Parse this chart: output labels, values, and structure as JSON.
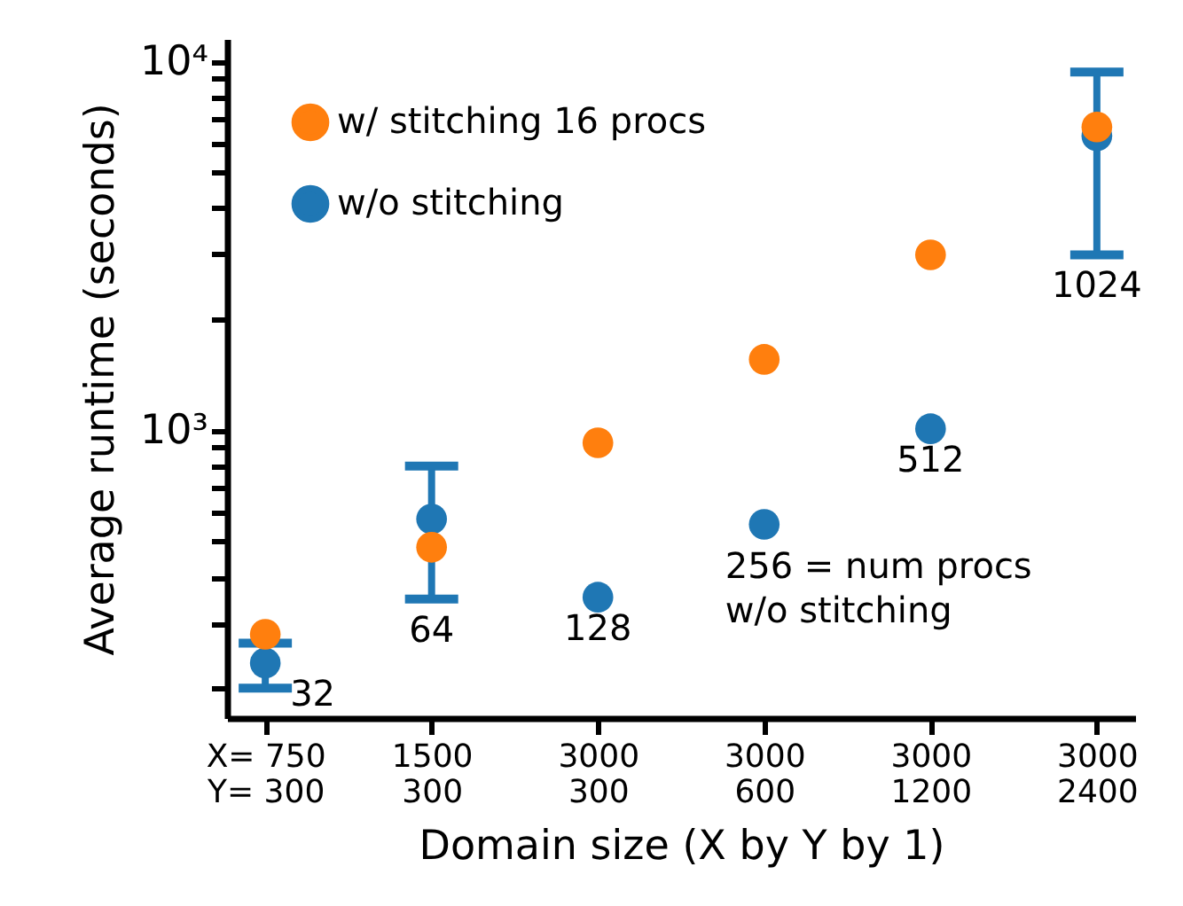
{
  "chart_data": {
    "type": "scatter",
    "xlabel": "Domain size (X by Y by 1)",
    "ylabel": "Average runtime (seconds)",
    "categories": [
      "X= 750\nY= 300",
      "1500\n300",
      "3000\n300",
      "3000\n600",
      "3000\n1200",
      "3000\n2400"
    ],
    "series": [
      {
        "name": "w/ stitching 16 procs",
        "color": "#ff7f0e",
        "values": [
          280,
          482,
          925,
          1557,
          2990,
          6640
        ]
      },
      {
        "name": "w/o stitching",
        "color": "#1f77b4",
        "values": [
          234,
          575,
          353,
          556,
          1010,
          6280
        ],
        "errors": [
          [
            200,
            265
          ],
          [
            349,
            800
          ],
          null,
          null,
          null,
          [
            2990,
            9360
          ]
        ]
      }
    ],
    "log": "y",
    "ylim": [
      166,
      11500
    ],
    "yticks": [
      {
        "value": 200,
        "label": null
      },
      {
        "value": 300,
        "label": null
      },
      {
        "value": 400,
        "label": null
      },
      {
        "value": 500,
        "label": null
      },
      {
        "value": 600,
        "label": null
      },
      {
        "value": 700,
        "label": null
      },
      {
        "value": 800,
        "label": null
      },
      {
        "value": 900,
        "label": null
      },
      {
        "value": 1000,
        "label": "10³"
      },
      {
        "value": 2000,
        "label": null
      },
      {
        "value": 3000,
        "label": null
      },
      {
        "value": 4000,
        "label": null
      },
      {
        "value": 5000,
        "label": null
      },
      {
        "value": 6000,
        "label": null
      },
      {
        "value": 7000,
        "label": null
      },
      {
        "value": 8000,
        "label": null
      },
      {
        "value": 9000,
        "label": null
      },
      {
        "value": 10000,
        "label": "10⁴"
      }
    ],
    "grid": false,
    "legend": "top left",
    "marker": "circle",
    "annotations": [
      {
        "text": "32",
        "x": "X= 750\nY= 300",
        "y": 234
      },
      {
        "text": "64",
        "x": "1500\n300",
        "y": 575
      },
      {
        "text": "128",
        "x": "3000\n300",
        "y": 353
      },
      {
        "text": "256 = num procs",
        "x": "3000\n600",
        "y": 556
      },
      "w/o stitching",
      {
        "text": "512",
        "x": "3000\n1200",
        "y": 1010
      },
      {
        "text": "1024",
        "x": "3000\n2400",
        "y": 2990
      }
    ]
  }
}
